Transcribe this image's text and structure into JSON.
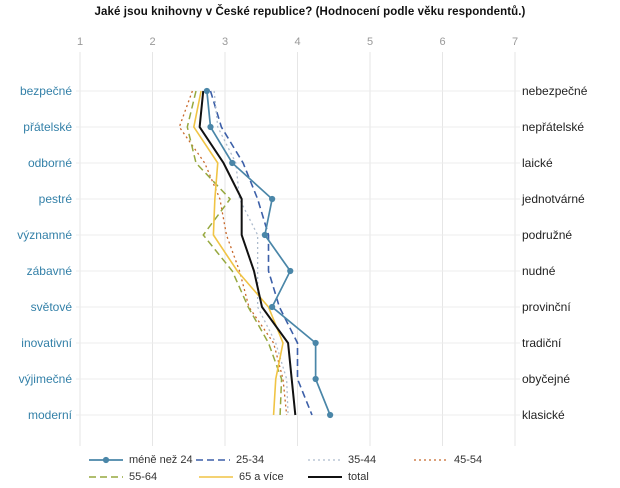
{
  "title": "Jaké jsou knihovny v České republice? (Hodnocení podle věku respondentů.)",
  "chart_data": {
    "type": "line",
    "subtype": "semantic-differential-profile",
    "title": "Jaké jsou knihovny v České republice? (Hodnocení podle věku respondentů.)",
    "x_axis": {
      "min": 1,
      "max": 7,
      "position": "top",
      "ticks": [
        "1",
        "2",
        "3",
        "4",
        "5",
        "6",
        "7"
      ]
    },
    "grid": true,
    "legend_position": "bottom",
    "categories_left": [
      "bezpečné",
      "přátelské",
      "odborné",
      "pestré",
      "významné",
      "zábavné",
      "světové",
      "inovativní",
      "výjimečné",
      "moderní"
    ],
    "categories_right": [
      "nebezpečné",
      "nepřátelské",
      "laické",
      "jednotvárné",
      "podružné",
      "nudné",
      "provinční",
      "tradiční",
      "obyčejné",
      "klasické"
    ],
    "series": [
      {
        "name": "méně než 24",
        "color": "#4a86a8",
        "style": "solid",
        "marker": "circle",
        "width": 1.7,
        "values": [
          2.75,
          2.8,
          3.1,
          3.65,
          3.55,
          3.9,
          3.65,
          4.25,
          4.25,
          4.45
        ]
      },
      {
        "name": "25-34",
        "color": "#3c5fa8",
        "style": "dashed",
        "marker": "none",
        "width": 1.6,
        "values": [
          2.8,
          2.95,
          3.25,
          3.45,
          3.6,
          3.6,
          3.75,
          4.0,
          4.0,
          4.2
        ]
      },
      {
        "name": "35-44",
        "color": "#aebccd",
        "style": "dotted",
        "marker": "none",
        "width": 1.3,
        "values": [
          2.85,
          2.9,
          3.15,
          3.2,
          3.45,
          3.45,
          3.45,
          3.7,
          3.85,
          3.87
        ]
      },
      {
        "name": "45-54",
        "color": "#c8682a",
        "style": "dotted",
        "marker": "none",
        "width": 1.3,
        "values": [
          2.55,
          2.37,
          2.72,
          2.93,
          3.02,
          3.2,
          3.33,
          3.67,
          3.8,
          3.85
        ]
      },
      {
        "name": "55-64",
        "color": "#96a83f",
        "style": "dashed",
        "marker": "none",
        "width": 1.5,
        "values": [
          2.6,
          2.48,
          2.6,
          3.07,
          2.7,
          3.1,
          3.32,
          3.6,
          3.78,
          3.76
        ]
      },
      {
        "name": "65 a více",
        "color": "#f0c445",
        "style": "solid",
        "marker": "none",
        "width": 1.6,
        "values": [
          2.67,
          2.57,
          2.9,
          2.86,
          2.84,
          3.17,
          3.6,
          3.8,
          3.7,
          3.67
        ]
      },
      {
        "name": "total",
        "color": "#111111",
        "style": "solid",
        "marker": "none",
        "width": 2.0,
        "values": [
          2.7,
          2.65,
          2.98,
          3.23,
          3.23,
          3.4,
          3.51,
          3.87,
          3.92,
          3.97
        ]
      }
    ]
  }
}
